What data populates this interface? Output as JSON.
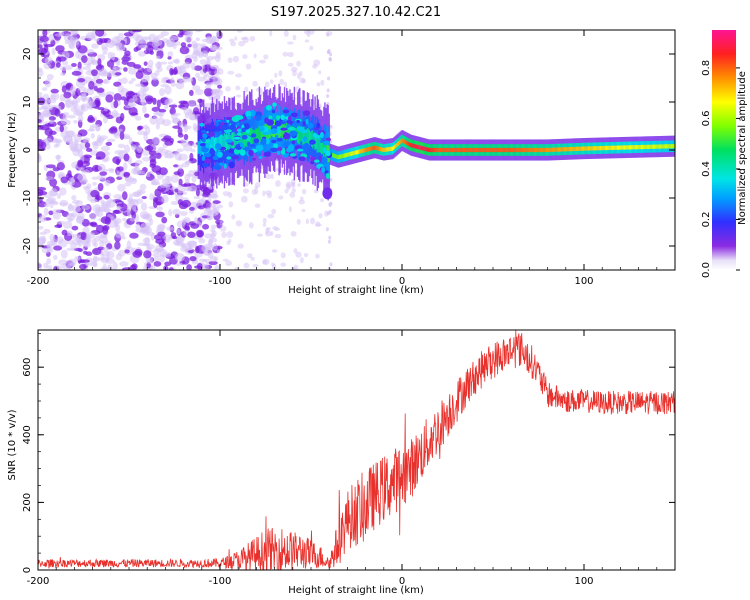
{
  "title": "S197.2025.327.10.42.C21",
  "colors": {
    "snr_line": "#e8312c",
    "ridge": "#ff2d2d",
    "scatter": "#7b1fe0",
    "scatter_light": "#d6c2f5"
  },
  "chart_data": [
    {
      "type": "heatmap",
      "name": "spectrogram",
      "xlabel": "Height of straight line (km)",
      "ylabel": "Frequency (Hz)",
      "xlim": [
        -200,
        150
      ],
      "ylim": [
        -25,
        25
      ],
      "xticks": [
        -200,
        -100,
        0,
        100
      ],
      "xtick_labels": [
        "-200",
        "-100",
        "0",
        "100"
      ],
      "yticks": [
        -20,
        -10,
        0,
        10,
        20
      ],
      "ytick_labels": [
        "-20",
        "-10",
        "0",
        "10",
        "20"
      ],
      "ridge": {
        "x": [
          -110,
          -100,
          -90,
          -80,
          -70,
          -60,
          -50,
          -45,
          -40,
          -35,
          -30,
          -25,
          -20,
          -15,
          -10,
          -5,
          0,
          5,
          10,
          15,
          20,
          40,
          60,
          80,
          100,
          120,
          150
        ],
        "freq": [
          0.5,
          1.5,
          2.0,
          3.0,
          4.5,
          3.5,
          2.5,
          1.0,
          -0.8,
          -1.5,
          -1.0,
          -0.5,
          0.0,
          0.5,
          0.0,
          0.3,
          2.0,
          1.0,
          0.5,
          0.0,
          0.0,
          0.0,
          0.0,
          0.0,
          0.3,
          0.5,
          0.8
        ],
        "amplitude": [
          0.35,
          0.4,
          0.45,
          0.5,
          0.55,
          0.5,
          0.45,
          0.45,
          0.55,
          0.6,
          0.65,
          0.7,
          0.8,
          0.85,
          0.75,
          0.7,
          0.8,
          0.9,
          0.95,
          0.9,
          0.85,
          0.85,
          0.85,
          0.8,
          0.75,
          0.7,
          0.65
        ]
      }
    },
    {
      "type": "colorbar",
      "name": "colorbar",
      "label": "Normalized spectral amplitude",
      "range": [
        0,
        0.95
      ],
      "ticks": [
        0.0,
        0.2,
        0.4,
        0.6,
        0.8
      ],
      "tick_labels": [
        "0.0",
        "0.2",
        "0.4",
        "0.6",
        "0.8"
      ]
    },
    {
      "type": "line",
      "name": "snr",
      "xlabel": "Height of straight line (km)",
      "ylabel": "SNR (10 * v/v)",
      "xlim": [
        -200,
        150
      ],
      "ylim": [
        0,
        710
      ],
      "xticks": [
        -200,
        -100,
        0,
        100
      ],
      "xtick_labels": [
        "-200",
        "-100",
        "0",
        "100"
      ],
      "yticks": [
        0,
        200,
        400,
        600
      ],
      "ytick_labels": [
        "0",
        "200",
        "400",
        "600"
      ],
      "envelope": {
        "x": [
          -200,
          -150,
          -120,
          -100,
          -95,
          -90,
          -85,
          -80,
          -75,
          -70,
          -65,
          -60,
          -55,
          -50,
          -45,
          -40,
          -35,
          -30,
          -25,
          -20,
          -15,
          -10,
          -5,
          0,
          5,
          10,
          15,
          20,
          25,
          30,
          35,
          40,
          45,
          50,
          55,
          60,
          65,
          70,
          75,
          80,
          90,
          100,
          110,
          120,
          130,
          140,
          150
        ],
        "base": [
          20,
          20,
          20,
          20,
          25,
          30,
          35,
          45,
          55,
          55,
          60,
          55,
          55,
          45,
          40,
          20,
          80,
          150,
          170,
          190,
          220,
          240,
          260,
          280,
          300,
          340,
          380,
          420,
          460,
          500,
          540,
          570,
          600,
          620,
          635,
          650,
          655,
          630,
          580,
          520,
          500,
          500,
          495,
          495,
          495,
          495,
          495
        ],
        "noise": [
          12,
          12,
          12,
          14,
          20,
          30,
          45,
          55,
          70,
          70,
          70,
          60,
          55,
          45,
          35,
          20,
          70,
          90,
          100,
          110,
          100,
          100,
          100,
          95,
          90,
          85,
          80,
          75,
          70,
          65,
          60,
          55,
          55,
          55,
          55,
          55,
          55,
          50,
          45,
          40,
          35,
          35,
          35,
          35,
          35,
          35,
          35
        ]
      }
    }
  ]
}
